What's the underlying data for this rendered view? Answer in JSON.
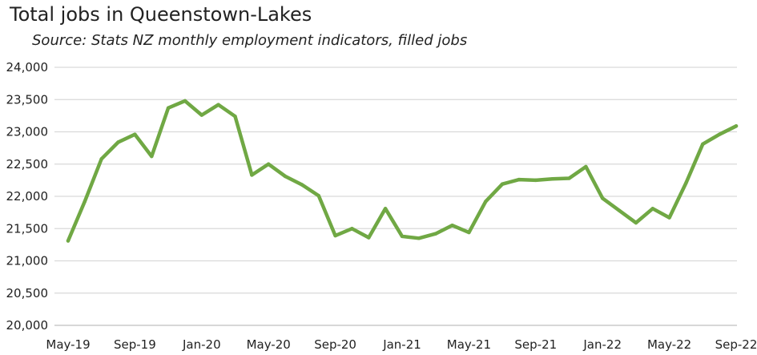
{
  "chart_data": {
    "type": "line",
    "title": "Total jobs in Queenstown-Lakes",
    "subtitle": "Source: Stats NZ monthly employment indicators, filled jobs",
    "xlabel": "",
    "ylabel": "",
    "ylim": [
      20000,
      24000
    ],
    "yticks": [
      20000,
      20500,
      21000,
      21500,
      22000,
      22500,
      23000,
      23500,
      24000
    ],
    "ytick_labels": [
      "20,000",
      "20,500",
      "21,000",
      "21,500",
      "22,000",
      "22,500",
      "23,000",
      "23,500",
      "24,000"
    ],
    "x_tick_labels": [
      "May-19",
      "Sep-19",
      "Jan-20",
      "May-20",
      "Sep-20",
      "Jan-21",
      "May-21",
      "Sep-21",
      "Jan-22",
      "May-22",
      "Sep-22"
    ],
    "grid": true,
    "legend": "none",
    "line_color": "#70a844",
    "x": [
      "May-19",
      "Jun-19",
      "Jul-19",
      "Aug-19",
      "Sep-19",
      "Oct-19",
      "Nov-19",
      "Dec-19",
      "Jan-20",
      "Feb-20",
      "Mar-20",
      "Apr-20",
      "May-20",
      "Jun-20",
      "Jul-20",
      "Aug-20",
      "Sep-20",
      "Oct-20",
      "Nov-20",
      "Dec-20",
      "Jan-21",
      "Feb-21",
      "Mar-21",
      "Apr-21",
      "May-21",
      "Jun-21",
      "Jul-21",
      "Aug-21",
      "Sep-21",
      "Oct-21",
      "Nov-21",
      "Dec-21",
      "Jan-22",
      "Feb-22",
      "Mar-22",
      "Apr-22",
      "May-22",
      "Jun-22",
      "Jul-22",
      "Aug-22",
      "Sep-22"
    ],
    "series": [
      {
        "values": [
          21310,
          21920,
          22580,
          22840,
          22960,
          22620,
          23370,
          23480,
          23260,
          23420,
          23240,
          22330,
          22500,
          22310,
          22180,
          22010,
          21390,
          21500,
          21360,
          21810,
          21380,
          21350,
          21420,
          21550,
          21440,
          21920,
          22190,
          22260,
          22250,
          22270,
          22280,
          22460,
          21970,
          21780,
          21590,
          21810,
          21670,
          22210,
          22810,
          22960,
          23090
        ]
      }
    ]
  }
}
